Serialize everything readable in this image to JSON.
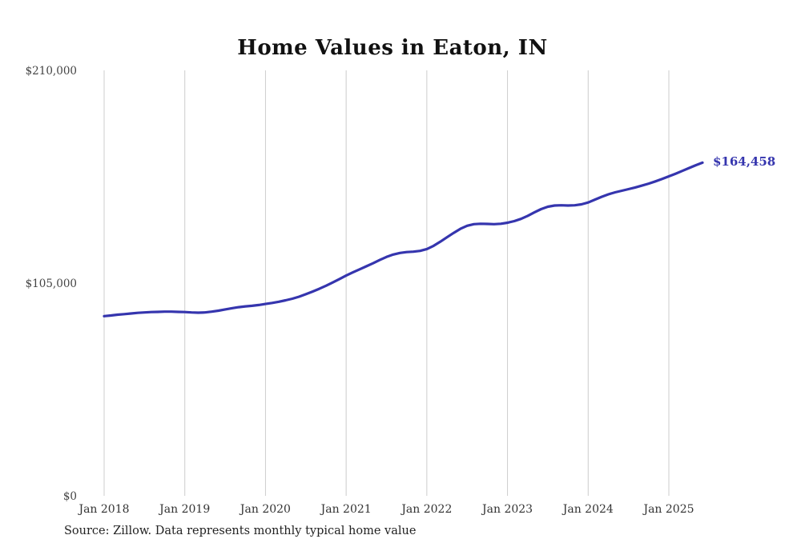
{
  "title": "Home Values in Eaton, IN",
  "source_note": "Source: Zillow. Data represents monthly typical home value",
  "chart_data": {
    "type": "line",
    "series_name": "Typical home value (monthly)",
    "x_start": "Jan 2018",
    "x_tick_labels": [
      "Jan 2018",
      "Jan 2019",
      "Jan 2020",
      "Jan 2021",
      "Jan 2022",
      "Jan 2023",
      "Jan 2024",
      "Jan 2025"
    ],
    "x_tick_month_indices": [
      0,
      12,
      24,
      36,
      48,
      60,
      72,
      84
    ],
    "y_ticks": [
      {
        "value": 0,
        "label": "$0"
      },
      {
        "value": 105000,
        "label": "$105,000"
      },
      {
        "value": 210000,
        "label": "$210,000"
      }
    ],
    "ylim": [
      0,
      210000
    ],
    "grid": "vertical-only",
    "legend": "none",
    "line_color": "#3535ae",
    "grid_color": "#cccccc",
    "end_label": "$164,458",
    "end_value": 164458,
    "values": [
      88700,
      89000,
      89400,
      89700,
      90000,
      90300,
      90500,
      90700,
      90800,
      90900,
      90900,
      90800,
      90700,
      90500,
      90400,
      90500,
      90900,
      91400,
      92000,
      92600,
      93100,
      93500,
      93800,
      94200,
      94700,
      95200,
      95800,
      96500,
      97300,
      98300,
      99500,
      100800,
      102200,
      103700,
      105300,
      107000,
      108700,
      110300,
      111800,
      113300,
      114800,
      116400,
      117900,
      119100,
      119900,
      120300,
      120500,
      120900,
      121800,
      123400,
      125400,
      127600,
      129800,
      131800,
      133300,
      134100,
      134300,
      134200,
      134100,
      134300,
      134800,
      135600,
      136700,
      138200,
      139900,
      141500,
      142700,
      143300,
      143400,
      143300,
      143400,
      143900,
      144800,
      146200,
      147600,
      148800,
      149800,
      150600,
      151400,
      152200,
      153100,
      154100,
      155200,
      156400,
      157700,
      159000,
      160400,
      161800,
      163200,
      164458
    ]
  }
}
